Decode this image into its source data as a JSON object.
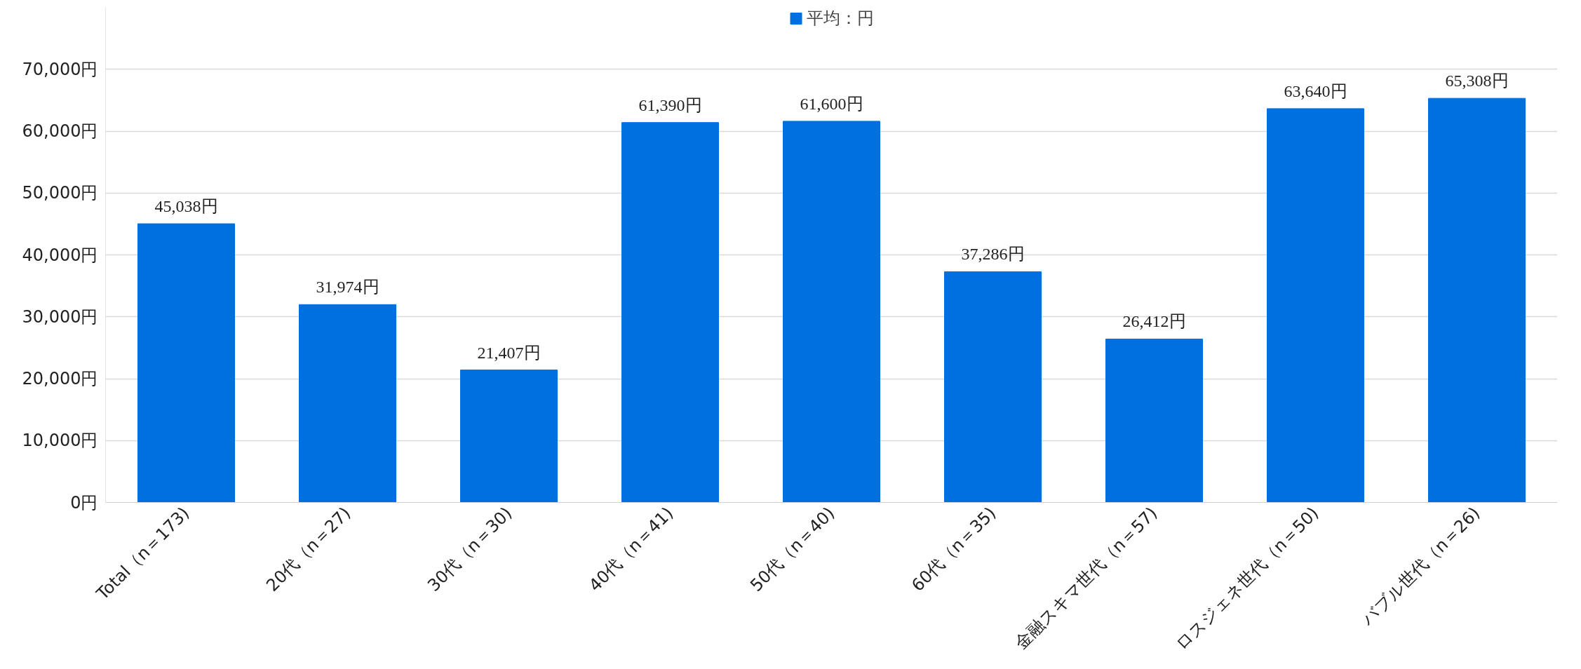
{
  "chart_data": {
    "type": "bar",
    "categories": [
      "Total（n＝173)",
      "20代（n＝27)",
      "30代（n＝30)",
      "40代（n＝41)",
      "50代（n＝40)",
      "60代（n＝35)",
      "金融スキマ世代（n＝57)",
      "ロスジェネ世代（n＝50)",
      "バブル世代（n＝26)"
    ],
    "series": [
      {
        "name": "平均：円",
        "color": "#0070e0",
        "values": [
          45038,
          31974,
          21407,
          61390,
          61600,
          37286,
          26412,
          63640,
          65308
        ],
        "value_labels": [
          "45,038円",
          "31,974円",
          "21,407円",
          "61,390円",
          "61,600円",
          "37,286円",
          "26,412円",
          "63,640円",
          "65,308円"
        ]
      }
    ],
    "ylim": [
      0,
      80000
    ],
    "yticks": [
      {
        "value": 0,
        "label": "0円"
      },
      {
        "value": 10000,
        "label": "10,000円"
      },
      {
        "value": 20000,
        "label": "20,000円"
      },
      {
        "value": 30000,
        "label": "30,000円"
      },
      {
        "value": 40000,
        "label": "40,000円"
      },
      {
        "value": 50000,
        "label": "50,000円"
      },
      {
        "value": 60000,
        "label": "60,000円"
      },
      {
        "value": 70000,
        "label": "70,000円"
      }
    ],
    "grid": "y",
    "legend": "top"
  }
}
